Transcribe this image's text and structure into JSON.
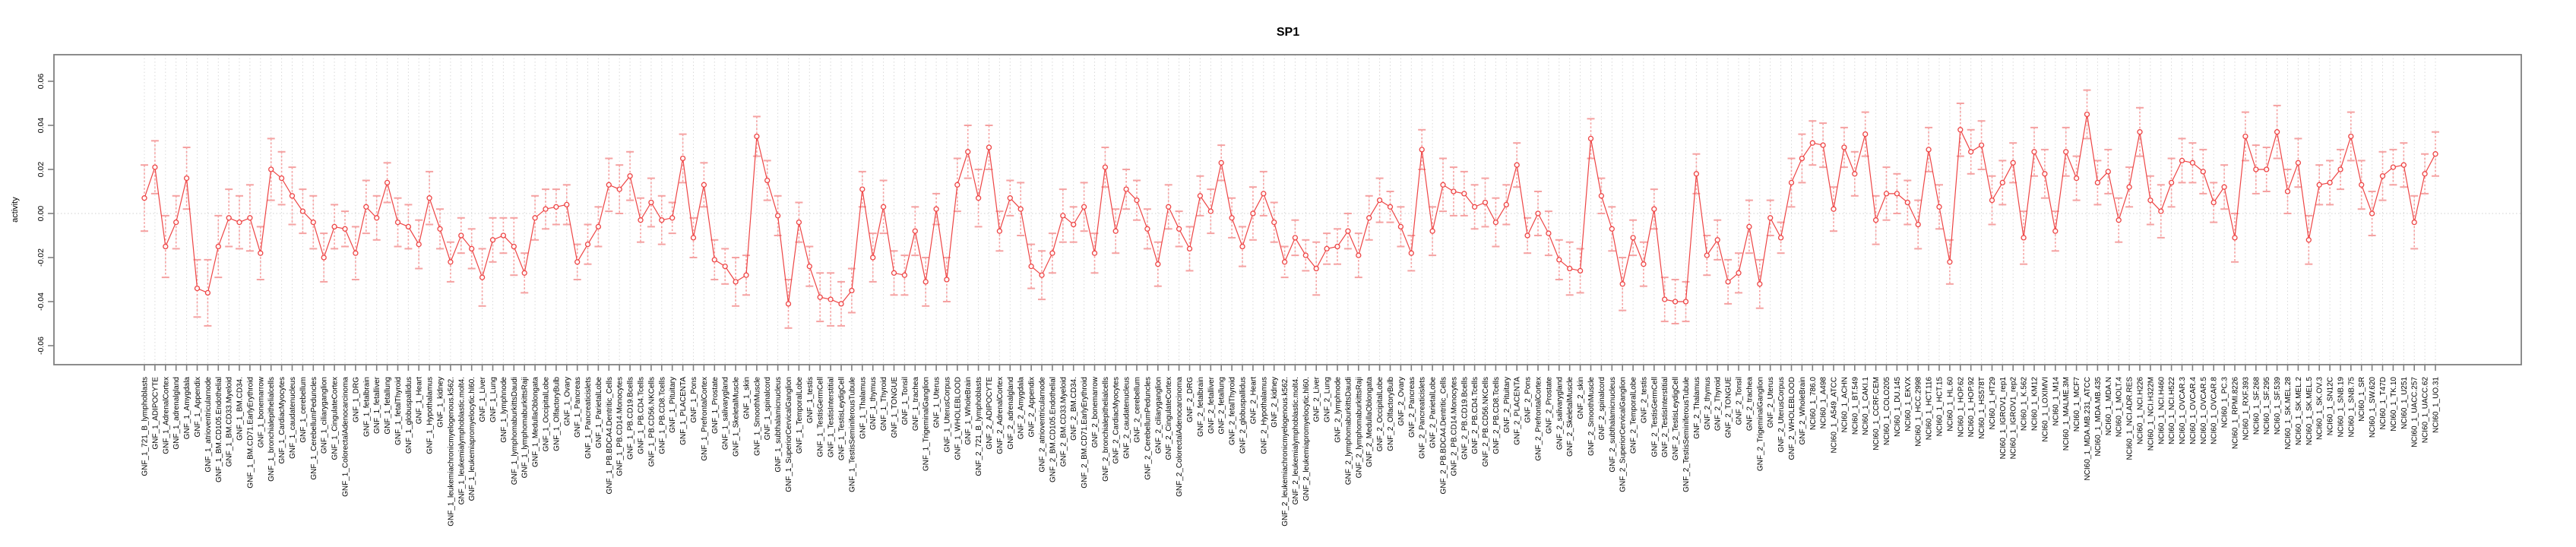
{
  "chart_data": {
    "type": "line",
    "title": "SP1",
    "ylabel": "activity",
    "series_name": "SP1 TF activity per sample (point estimate with error bars)",
    "legend": "none",
    "grid": "vertical dotted gridline at every category; horizontal dotted line at y=0",
    "marker": "open-circle",
    "error_bars": true,
    "ylim": [
      -0.069,
      0.072
    ],
    "yticks": [
      0.06,
      0.04,
      0.02,
      0.0,
      -0.02,
      -0.04,
      -0.06
    ],
    "categories": [
      "GNF_1_721_B_lymphoblasts",
      "GNF_1_ADIPOCYTE",
      "GNF_1_AdrenalCortex",
      "GNF_1_adrenalgland",
      "GNF_1_Amygdala",
      "GNF_1_Appendix",
      "GNF_1_atrioventricularnode",
      "GNF_1_BM.CD105.Endothelial",
      "GNF_1_BM.CD33.Myeloid",
      "GNF_1_BM.CD34.",
      "GNF_1_BM.CD71.EarlyErythroid",
      "GNF_1_bonemarrow",
      "GNF_1_bronchialepithelialcells",
      "GNF_1_CardiacMyocytes",
      "GNF_1_caudatenucleus",
      "GNF_1_cerebellum",
      "GNF_1_CerebellumPeduncles",
      "GNF_1_ciliaryganglion",
      "GNF_1_CingulateCortex",
      "GNF_1_ColorectalAdenocarcinoma",
      "GNF_1_DRG",
      "GNF_1_fetalbrain",
      "GNF_1_fetalliver",
      "GNF_1_fetallung",
      "GNF_1_fetalThyroid",
      "GNF_1_globuspallidus",
      "GNF_1_Heart",
      "GNF_1_Hypothalamus",
      "GNF_1_kidney",
      "GNF_1_leukemiachronicmyelogenous.k562.",
      "GNF_1_leukemialymphoblastic.molt4.",
      "GNF_1_leukemiapromyelocytic.hl60.",
      "GNF_1_Liver",
      "GNF_1_Lung",
      "GNF_1_lymphnode",
      "GNF_1_lymphomaburkittsDaudi",
      "GNF_1_lymphomaburkittsRaji",
      "GNF_1_MedullaOblongata",
      "GNF_1_OccipitalLobe",
      "GNF_1_OlfactoryBulb",
      "GNF_1_Ovary",
      "GNF_1_Pancreas",
      "GNF_1_Pancreaticislets",
      "GNF_1_ParietalLobe",
      "GNF_1_PB.BDCA4.Dentritic_Cells",
      "GNF_1_PB.CD14.Monocytes",
      "GNF_1_PB.CD19.Bcells",
      "GNF_1_PB.CD4.Tcells",
      "GNF_1_PB.CD56.NKCells",
      "GNF_1_PB.CD8.Tcells",
      "GNF_1_Pituitary",
      "GNF_1_PLACENTA",
      "GNF_1_Pons",
      "GNF_1_PrefrontalCortex",
      "GNF_1_Prostate",
      "GNF_1_salivarygland",
      "GNF_1_SkeletalMuscle",
      "GNF_1_skin",
      "GNF_1_SmoothMuscle",
      "GNF_1_spinalcord",
      "GNF_1_subthalamicnucleus",
      "GNF_1_SuperiorCervicalGanglion",
      "GNF_1_TemporalLobe",
      "GNF_1_testis",
      "GNF_1_TestisGermCell",
      "GNF_1_TestisInterstitial",
      "GNF_1_TestisLeydigCell",
      "GNF_1_TestisSeminiferousTubule",
      "GNF_1_Thalamus",
      "GNF_1_thymus",
      "GNF_1_Thyroid",
      "GNF_1_TONGUE",
      "GNF_1_Tonsil",
      "GNF_1_trachea",
      "GNF_1_TrigeminalGanglion",
      "GNF_1_Uterus",
      "GNF_1_UterusCorpus",
      "GNF_1_WHOLEBLOOD",
      "GNF_1_WholeBrain",
      "GNF_2_721_B_lymphoblasts",
      "GNF_2_ADIPOCYTE",
      "GNF_2_AdrenalCortex",
      "GNF_2_adrenalgland",
      "GNF_2_Amygdala",
      "GNF_2_Appendix",
      "GNF_2_atrioventricularnode",
      "GNF_2_BM.CD105.Endothelial",
      "GNF_2_BM.CD33.Myeloid",
      "GNF_2_BM.CD34.",
      "GNF_2_BM.CD71.EarlyErythroid",
      "GNF_2_bonemarrow",
      "GNF_2_bronchialepithelialcells",
      "GNF_2_CardiacMyocytes",
      "GNF_2_caudatenucleus",
      "GNF_2_cerebellum",
      "GNF_2_CerebellumPeduncles",
      "GNF_2_ciliaryganglion",
      "GNF_2_CingulateCortex",
      "GNF_2_ColorectalAdenocarcinoma",
      "GNF_2_DRG",
      "GNF_2_fetalbrain",
      "GNF_2_fetalliver",
      "GNF_2_fetallung",
      "GNF_2_fetalThyroid",
      "GNF_2_globuspallidus",
      "GNF_2_Heart",
      "GNF_2_Hypothalamus",
      "GNF_2_kidney",
      "GNF_2_leukemiachronicmyelogenous.k562.",
      "GNF_2_leukemialymphoblastic.molt4.",
      "GNF_2_leukemiapromyelocytic.hl60.",
      "GNF_2_Liver",
      "GNF_2_Lung",
      "GNF_2_lymphnode",
      "GNF_2_lymphomaburkittsDaudi",
      "GNF_2_lymphomaburkittsRaji",
      "GNF_2_MedullaOblongata",
      "GNF_2_OccipitalLobe",
      "GNF_2_OlfactoryBulb",
      "GNF_2_Ovary",
      "GNF_2_Pancreas",
      "GNF_2_Pancreaticislets",
      "GNF_2_ParietalLobe",
      "GNF_2_PB.BDCA4.Dentritic_Cells",
      "GNF_2_PB.CD14.Monocytes",
      "GNF_2_PB.CD19.Bcells",
      "GNF_2_PB.CD4.Tcells",
      "GNF_2_PB.CD56.NKCells",
      "GNF_2_PB.CD8.Tcells",
      "GNF_2_Pituitary",
      "GNF_2_PLACENTA",
      "GNF_2_Pons",
      "GNF_2_PrefrontalCortex",
      "GNF_2_Prostate",
      "GNF_2_salivarygland",
      "GNF_2_SkeletalMuscle",
      "GNF_2_skin",
      "GNF_2_SmoothMuscle",
      "GNF_2_spinalcord",
      "GNF_2_subthalamicnucleus",
      "GNF_2_SuperiorCervicalGanglion",
      "GNF_2_TemporalLobe",
      "GNF_2_testis",
      "GNF_2_TestisGermCell",
      "GNF_2_TestisInterstitial",
      "GNF_2_TestisLeydigCell",
      "GNF_2_TestisSeminiferousTubule",
      "GNF_2_Thalamus",
      "GNF_2_thymus",
      "GNF_2_Thyroid",
      "GNF_2_TONGUE",
      "GNF_2_Tonsil",
      "GNF_2_trachea",
      "GNF_2_TrigeminalGanglion",
      "GNF_2_Uterus",
      "GNF_2_UterusCorpus",
      "GNF_2_WHOLEBLOOD",
      "GNF_2_WholeBrain",
      "NCI60_1_786.0",
      "NCI60_1_A498",
      "NCI60_1_A549_ATCC",
      "NCI60_1_ACHN",
      "NCI60_1_BT.549",
      "NCI60_1_CAKI.1",
      "NCI60_1_CCRF.CEM",
      "NCI60_1_COLO205",
      "NCI60_1_DU.145",
      "NCI60_1_EKVX",
      "NCI60_1_HCC.2998",
      "NCI60_1_HCT.116",
      "NCI60_1_HCT.15",
      "NCI60_1_HL.60",
      "NCI60_1_HOP.62",
      "NCI60_1_HOP.92",
      "NCI60_1_HS578T",
      "NCI60_1_HT29",
      "NCI60_1_IGROV1_rep1",
      "NCI60_1_IGROV1_rep2",
      "NCI60_1_K.562",
      "NCI60_1_KM12",
      "NCI60_1_LOXIMVI",
      "NCI60_1_M14",
      "NCI60_1_MALME.3M",
      "NCI60_1_MCF7",
      "NCI60_1_MDA.MB.231_ATCC",
      "NCI60_1_MDA.MB.435",
      "NCI60_1_MDA.N",
      "NCI60_1_MOLT.4",
      "NCI60_1_NCI.ADR.RES",
      "NCI60_1_NCI.H226",
      "NCI60_1_NCI.H322M",
      "NCI60_1_NCI.H460",
      "NCI60_1_NCI.H522",
      "NCI60_1_OVCAR.3",
      "NCI60_1_OVCAR.4",
      "NCI60_1_OVCAR.5",
      "NCI60_1_OVCAR.8",
      "NCI60_1_PC.3",
      "NCI60_1_RPMI.8226",
      "NCI60_1_RXF.393",
      "NCI60_1_SF.268",
      "NCI60_1_SF.295",
      "NCI60_1_SF.539",
      "NCI60_1_SK.MEL.28",
      "NCI60_1_SK.MEL.2",
      "NCI60_1_SK.MEL.5",
      "NCI60_1_SK.OV.3",
      "NCI60_1_SN12C",
      "NCI60_1_SNB.19",
      "NCI60_1_SNB.75",
      "NCI60_1_SR",
      "NCI60_1_SW.620",
      "NCI60_1_T47D",
      "NCI60_1_TK.10",
      "NCI60_1_U251",
      "NCI60_1_UACC.257",
      "NCI60_1_UACC.62",
      "NCI60_1_UO.31"
    ],
    "values": [
      0.007,
      0.021,
      -0.015,
      -0.004,
      0.016,
      -0.034,
      -0.036,
      -0.015,
      -0.002,
      -0.004,
      -0.002,
      -0.018,
      0.02,
      0.016,
      0.008,
      0.001,
      -0.004,
      -0.02,
      -0.006,
      -0.007,
      -0.018,
      0.003,
      -0.002,
      0.014,
      -0.004,
      -0.006,
      -0.014,
      0.007,
      -0.007,
      -0.022,
      -0.01,
      -0.016,
      -0.029,
      -0.012,
      -0.01,
      -0.015,
      -0.027,
      -0.002,
      0.002,
      0.003,
      0.004,
      -0.022,
      -0.014,
      -0.006,
      0.013,
      0.011,
      0.017,
      -0.003,
      0.005,
      -0.003,
      -0.002,
      0.025,
      -0.011,
      0.013,
      -0.021,
      -0.024,
      -0.031,
      -0.028,
      0.035,
      0.015,
      -0.001,
      -0.041,
      -0.004,
      -0.024,
      -0.038,
      -0.039,
      -0.041,
      -0.035,
      0.011,
      -0.02,
      0.003,
      -0.027,
      -0.028,
      -0.008,
      -0.031,
      0.002,
      -0.03,
      0.013,
      0.028,
      0.007,
      0.03,
      -0.008,
      0.007,
      0.002,
      -0.024,
      -0.028,
      -0.018,
      -0.001,
      -0.005,
      0.003,
      -0.018,
      0.021,
      -0.008,
      0.011,
      0.006,
      -0.007,
      -0.023,
      0.003,
      -0.007,
      -0.016,
      0.008,
      0.001,
      0.023,
      -0.002,
      -0.015,
      0.0,
      0.009,
      -0.004,
      -0.022,
      -0.011,
      -0.019,
      -0.025,
      -0.016,
      -0.015,
      -0.008,
      -0.019,
      -0.002,
      0.006,
      0.003,
      -0.006,
      -0.018,
      0.029,
      -0.008,
      0.013,
      0.01,
      0.009,
      0.003,
      0.005,
      -0.004,
      0.004,
      0.022,
      -0.01,
      0.0,
      -0.009,
      -0.021,
      -0.025,
      -0.026,
      0.034,
      0.008,
      -0.007,
      -0.032,
      -0.011,
      -0.023,
      0.002,
      -0.039,
      -0.04,
      -0.04,
      0.018,
      -0.019,
      -0.012,
      -0.031,
      -0.027,
      -0.006,
      -0.032,
      -0.002,
      -0.011,
      0.014,
      0.025,
      0.032,
      0.031,
      0.002,
      0.03,
      0.018,
      0.036,
      -0.003,
      0.009,
      0.009,
      0.005,
      -0.005,
      0.029,
      0.003,
      -0.022,
      0.038,
      0.028,
      0.031,
      0.006,
      0.014,
      0.023,
      -0.011,
      0.028,
      0.018,
      -0.008,
      0.028,
      0.016,
      0.045,
      0.014,
      0.019,
      -0.003,
      0.012,
      0.037,
      0.006,
      0.001,
      0.014,
      0.024,
      0.023,
      0.019,
      0.005,
      0.012,
      -0.011,
      0.035,
      0.02,
      0.02,
      0.037,
      0.01,
      0.023,
      -0.012,
      0.013,
      0.014,
      0.02,
      0.035,
      0.013,
      0.0,
      0.017,
      0.021,
      0.022,
      -0.004,
      0.018,
      0.027
    ],
    "errors": [
      0.015,
      0.012,
      0.014,
      0.012,
      0.014,
      0.013,
      0.015,
      0.014,
      0.013,
      0.012,
      0.015,
      0.012,
      0.014,
      0.012,
      0.013,
      0.01,
      0.012,
      0.011,
      0.01,
      0.008,
      0.012,
      0.012,
      0.01,
      0.009,
      0.011,
      0.01,
      0.011,
      0.012,
      0.009,
      0.009,
      0.008,
      0.009,
      0.013,
      0.01,
      0.008,
      0.013,
      0.009,
      0.01,
      0.009,
      0.008,
      0.009,
      0.008,
      0.009,
      0.009,
      0.012,
      0.011,
      0.011,
      0.01,
      0.011,
      0.011,
      0.007,
      0.011,
      0.009,
      0.01,
      0.009,
      0.008,
      0.011,
      0.009,
      0.009,
      0.009,
      0.009,
      0.011,
      0.009,
      0.009,
      0.011,
      0.012,
      0.01,
      0.01,
      0.008,
      0.011,
      0.012,
      0.01,
      0.009,
      0.011,
      0.011,
      0.007,
      0.01,
      0.012,
      0.012,
      0.013,
      0.01,
      0.009,
      0.008,
      0.012,
      0.01,
      0.011,
      0.009,
      0.012,
      0.008,
      0.011,
      0.009,
      0.009,
      0.01,
      0.009,
      0.009,
      0.009,
      0.01,
      0.01,
      0.008,
      0.01,
      0.009,
      0.01,
      0.008,
      0.009,
      0.009,
      0.012,
      0.01,
      0.009,
      0.007,
      0.008,
      0.007,
      0.012,
      0.007,
      0.008,
      0.008,
      0.01,
      0.01,
      0.01,
      0.007,
      0.009,
      0.008,
      0.009,
      0.011,
      0.012,
      0.011,
      0.01,
      0.01,
      0.011,
      0.011,
      0.009,
      0.01,
      0.008,
      0.01,
      0.01,
      0.009,
      0.012,
      0.01,
      0.009,
      0.008,
      0.01,
      0.012,
      0.008,
      0.01,
      0.009,
      0.01,
      0.01,
      0.009,
      0.009,
      0.009,
      0.009,
      0.01,
      0.009,
      0.012,
      0.011,
      0.008,
      0.007,
      0.011,
      0.011,
      0.01,
      0.01,
      0.01,
      0.009,
      0.01,
      0.01,
      0.011,
      0.012,
      0.009,
      0.01,
      0.011,
      0.01,
      0.01,
      0.01,
      0.012,
      0.01,
      0.011,
      0.011,
      0.01,
      0.009,
      0.012,
      0.011,
      0.011,
      0.009,
      0.011,
      0.01,
      0.011,
      0.01,
      0.01,
      0.01,
      0.009,
      0.011,
      0.011,
      0.012,
      0.011,
      0.01,
      0.009,
      0.01,
      0.009,
      0.01,
      0.011,
      0.011,
      0.011,
      0.01,
      0.012,
      0.01,
      0.011,
      0.011,
      0.009,
      0.01,
      0.009,
      0.011,
      0.011,
      0.01,
      0.011,
      0.008,
      0.01,
      0.012,
      0.009,
      0.01
    ]
  },
  "colors": {
    "series_line": "#ee4545",
    "marker_stroke": "#ee4545",
    "error_bar": "#f5a2a2",
    "gridline": "#d9d9d9",
    "zero_line": "#d0d0d0",
    "axis": "#808080",
    "text": "#000000",
    "background": "#ffffff"
  }
}
